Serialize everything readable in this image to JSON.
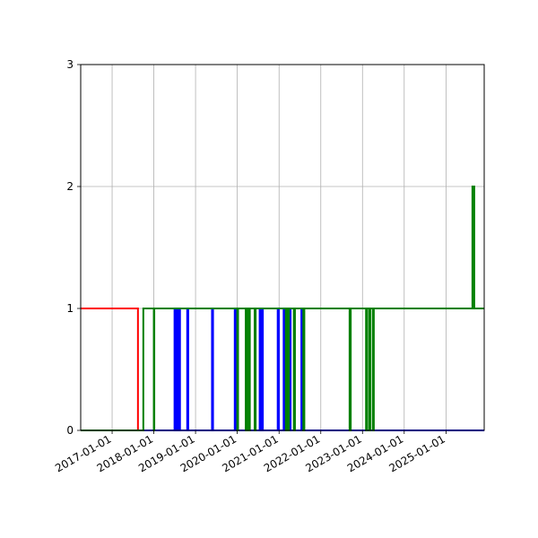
{
  "chart_data": {
    "type": "line",
    "title": "",
    "xlabel": "",
    "ylabel": "",
    "x_axis": "date",
    "xlim": [
      "2016-04-01",
      "2025-12-01"
    ],
    "ylim": [
      0,
      3
    ],
    "grid": true,
    "x_ticks": [
      "2017-01-01",
      "2018-01-01",
      "2019-01-01",
      "2020-01-01",
      "2021-01-01",
      "2022-01-01",
      "2023-01-01",
      "2024-01-01",
      "2025-01-01"
    ],
    "y_ticks": [
      0,
      1,
      2,
      3
    ],
    "series": [
      {
        "color": "#ff0000",
        "step": "post",
        "points": [
          [
            "2016-04-01",
            1
          ],
          [
            "2017-08-15",
            0
          ],
          [
            "2025-12-01",
            0
          ]
        ]
      },
      {
        "color": "#0000ff",
        "step": "post",
        "points": [
          [
            "2016-04-01",
            0
          ],
          [
            "2018-07-01",
            1
          ],
          [
            "2018-07-12",
            0
          ],
          [
            "2018-07-20",
            1
          ],
          [
            "2018-08-01",
            0
          ],
          [
            "2018-08-05",
            1
          ],
          [
            "2018-08-18",
            0
          ],
          [
            "2018-10-20",
            1
          ],
          [
            "2018-10-29",
            0
          ],
          [
            "2019-05-25",
            1
          ],
          [
            "2019-06-03",
            0
          ],
          [
            "2019-12-10",
            1
          ],
          [
            "2019-12-19",
            0
          ],
          [
            "2020-07-15",
            1
          ],
          [
            "2020-07-25",
            0
          ],
          [
            "2020-08-01",
            1
          ],
          [
            "2020-08-12",
            0
          ],
          [
            "2020-12-20",
            1
          ],
          [
            "2020-12-30",
            0
          ],
          [
            "2021-02-10",
            1
          ],
          [
            "2021-02-20",
            0
          ],
          [
            "2021-04-01",
            1
          ],
          [
            "2021-04-12",
            0
          ],
          [
            "2021-07-15",
            1
          ],
          [
            "2021-07-28",
            0
          ],
          [
            "2025-12-01",
            0
          ]
        ]
      },
      {
        "color": "#008000",
        "step": "post",
        "points": [
          [
            "2016-04-01",
            0
          ],
          [
            "2017-10-01",
            1
          ],
          [
            "2018-01-01",
            0
          ],
          [
            "2018-01-05",
            1
          ],
          [
            "2020-01-01",
            0
          ],
          [
            "2020-01-08",
            1
          ],
          [
            "2020-03-15",
            0
          ],
          [
            "2020-03-25",
            1
          ],
          [
            "2020-04-10",
            0
          ],
          [
            "2020-04-20",
            1
          ],
          [
            "2020-06-01",
            0
          ],
          [
            "2020-06-10",
            1
          ],
          [
            "2021-03-01",
            0
          ],
          [
            "2021-03-10",
            1
          ],
          [
            "2021-03-20",
            0
          ],
          [
            "2021-03-28",
            1
          ],
          [
            "2021-05-10",
            0
          ],
          [
            "2021-05-20",
            1
          ],
          [
            "2021-08-01",
            0
          ],
          [
            "2021-08-10",
            1
          ],
          [
            "2022-09-10",
            0
          ],
          [
            "2022-09-20",
            1
          ],
          [
            "2023-02-01",
            0
          ],
          [
            "2023-02-10",
            1
          ],
          [
            "2023-03-01",
            0
          ],
          [
            "2023-03-10",
            1
          ],
          [
            "2023-04-01",
            0
          ],
          [
            "2023-04-10",
            1
          ],
          [
            "2025-08-20",
            2
          ],
          [
            "2025-09-05",
            1
          ],
          [
            "2025-12-01",
            1
          ]
        ]
      }
    ]
  }
}
